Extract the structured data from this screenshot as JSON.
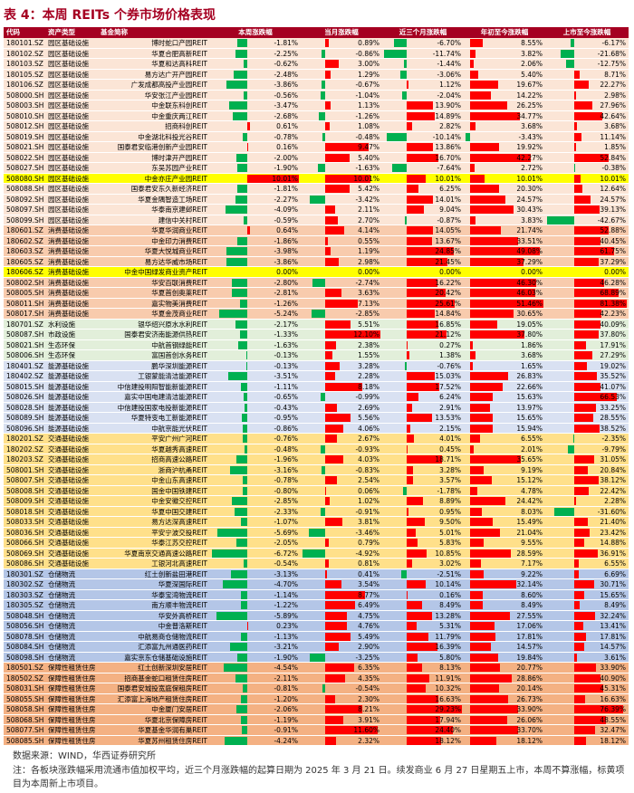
{
  "title": "表 4：本周 REITs 个券市场价格表现",
  "table": {
    "header": [
      "代码",
      "资产类型",
      "基金简称",
      "本周涨跌幅",
      "当月涨跌幅",
      "近三个月涨跌幅",
      "年初至今涨跌幅",
      "上市至今涨跌幅"
    ],
    "group_colors": {
      "园区基础设施": "#fbe5d6",
      "消费基础设施": "#f8cbad",
      "水利设施": "#e2efda",
      "市政设施": "#e2efda",
      "生态环保": "#e2efda",
      "能源基础设施": "#d9e1f2",
      "交通基础设施": "#ffe08a",
      "仓储物流": "#b4c6e7",
      "保障性租赁住房": "#f4b183"
    },
    "highlight_rows": [
      13,
      22
    ],
    "highlight_color": "#ffff00",
    "positive_color": "#ff0000",
    "negative_color": "#00b050",
    "rows": [
      [
        "180101.SZ",
        "园区基础设施",
        "博时蛇口产园REIT",
        "-1.81%",
        "0.89%",
        "-6.70%",
        "8.55%",
        "-6.17%"
      ],
      [
        "180102.SZ",
        "园区基础设施",
        "华夏合肥高新REIT",
        "-2.25%",
        "-0.86%",
        "-11.74%",
        "3.82%",
        "-21.68%"
      ],
      [
        "180103.SZ",
        "园区基础设施",
        "华夏和达高科REIT",
        "-0.62%",
        "3.00%",
        "-1.44%",
        "2.06%",
        "-12.75%"
      ],
      [
        "180105.SZ",
        "园区基础设施",
        "易方达广开产园REIT",
        "-2.48%",
        "1.29%",
        "-3.06%",
        "5.40%",
        "8.71%"
      ],
      [
        "180106.SZ",
        "园区基础设施",
        "广发成都高投产业园REIT",
        "-3.86%",
        "-0.67%",
        "1.12%",
        "19.67%",
        "22.27%"
      ],
      [
        "508000.SH",
        "园区基础设施",
        "华安张江产业园REIT",
        "-0.56%",
        "-1.04%",
        "-2.04%",
        "14.22%",
        "2.98%"
      ],
      [
        "508003.SH",
        "园区基础设施",
        "中金联东科创REIT",
        "-3.47%",
        "1.13%",
        "13.90%",
        "26.25%",
        "27.96%"
      ],
      [
        "508010.SH",
        "园区基础设施",
        "中金重庆两江REIT",
        "-2.68%",
        "-1.26%",
        "14.89%",
        "34.77%",
        "42.64%"
      ],
      [
        "508012.SH",
        "园区基础设施",
        "招商科创REIT",
        "0.61%",
        "1.08%",
        "2.82%",
        "3.68%",
        "3.68%"
      ],
      [
        "508019.SH",
        "园区基础设施",
        "中金湖北科投光谷REIT",
        "-0.78%",
        "-0.48%",
        "-10.14%",
        "-3.43%",
        "11.14%"
      ],
      [
        "508021.SH",
        "园区基础设施",
        "国泰君安临港创新产业园REIT",
        "0.16%",
        "9.47%",
        "13.86%",
        "19.92%",
        "1.85%"
      ],
      [
        "508022.SH",
        "园区基础设施",
        "博时津开产园REIT",
        "-2.00%",
        "5.40%",
        "16.70%",
        "42.27%",
        "52.84%"
      ],
      [
        "508027.SH",
        "园区基础设施",
        "东吴苏园产业REIT",
        "-1.90%",
        "-1.63%",
        "-7.64%",
        "2.72%",
        "-0.38%"
      ],
      [
        "508080.SH",
        "园区基础设施",
        "中金亦庄产业园REIT",
        "10.01%",
        "10.01%",
        "10.01%",
        "10.01%",
        "10.01%"
      ],
      [
        "508088.SH",
        "园区基础设施",
        "国泰君安东久新经济REIT",
        "-1.81%",
        "5.42%",
        "6.25%",
        "20.30%",
        "12.64%"
      ],
      [
        "508092.SH",
        "园区基础设施",
        "华夏金隅智造工场REIT",
        "-2.27%",
        "-3.42%",
        "14.01%",
        "24.57%",
        "24.57%"
      ],
      [
        "508097.SH",
        "园区基础设施",
        "华泰南京建邺REIT",
        "-4.09%",
        "2.11%",
        "9.04%",
        "30.43%",
        "39.13%"
      ],
      [
        "508099.SH",
        "园区基础设施",
        "建信中关村REIT",
        "-0.59%",
        "2.70%",
        "-0.87%",
        "3.83%",
        "-42.67%"
      ],
      [
        "180601.SZ",
        "消费基础设施",
        "华夏华润商业REIT",
        "0.64%",
        "4.14%",
        "14.05%",
        "21.74%",
        "52.88%"
      ],
      [
        "180602.SZ",
        "消费基础设施",
        "中金印力消费REIT",
        "-1.86%",
        "0.55%",
        "13.67%",
        "33.51%",
        "40.45%"
      ],
      [
        "180603.SZ",
        "消费基础设施",
        "华夏大悦城商业REIT",
        "-3.98%",
        "1.19%",
        "24.85%",
        "49.08%",
        "61.75%"
      ],
      [
        "180605.SZ",
        "消费基础设施",
        "易方达华威市场REIT",
        "-3.86%",
        "2.98%",
        "21.45%",
        "37.29%",
        "37.29%"
      ],
      [
        "180606.SZ",
        "消费基础设施",
        "中金中国绿发商业资产REIT",
        "0.00%",
        "0.00%",
        "0.00%",
        "0.00%",
        "0.00%"
      ],
      [
        "508002.SH",
        "消费基础设施",
        "华安百联消费REIT",
        "-2.80%",
        "-2.74%",
        "16.22%",
        "46.30%",
        "46.28%"
      ],
      [
        "508005.SH",
        "消费基础设施",
        "华夏首创奥莱REIT",
        "-2.81%",
        "3.63%",
        "20.42%",
        "46.03%",
        "68.89%"
      ],
      [
        "508011.SH",
        "消费基础设施",
        "嘉实物美消费REIT",
        "-1.26%",
        "7.13%",
        "25.61%",
        "51.46%",
        "81.38%"
      ],
      [
        "508017.SH",
        "消费基础设施",
        "华夏金茂商业REIT",
        "-5.24%",
        "-2.85%",
        "14.84%",
        "30.65%",
        "42.23%"
      ],
      [
        "180701.SZ",
        "水利设施",
        "银华绍兴原水水利REIT",
        "-2.17%",
        "5.51%",
        "16.85%",
        "19.05%",
        "40.09%"
      ],
      [
        "508087.SH",
        "市政设施",
        "国泰君安济南能源供热REIT",
        "-1.33%",
        "12.10%",
        "21.12%",
        "37.80%",
        "37.80%"
      ],
      [
        "508021.SH",
        "生态环保",
        "中航首钢绿能REIT",
        "-1.63%",
        "2.38%",
        "0.27%",
        "1.86%",
        "17.91%"
      ],
      [
        "508006.SH",
        "生态环保",
        "富国首创水务REIT",
        "-0.13%",
        "1.55%",
        "1.38%",
        "3.68%",
        "27.29%"
      ],
      [
        "180401.SZ",
        "能源基础设施",
        "鹏华深圳能源REIT",
        "-0.13%",
        "3.28%",
        "-0.76%",
        "1.65%",
        "19.02%"
      ],
      [
        "180402.SZ",
        "能源基础设施",
        "工银蒙能清洁能源REIT",
        "-3.51%",
        "2.28%",
        "15.03%",
        "26.83%",
        "35.52%"
      ],
      [
        "508015.SH",
        "能源基础设施",
        "中信建投明阳智能新能源REIT",
        "-1.11%",
        "8.18%",
        "17.52%",
        "22.66%",
        "41.07%"
      ],
      [
        "508026.SH",
        "能源基础设施",
        "嘉实中国电建清洁能源REIT",
        "-0.65%",
        "-0.99%",
        "6.24%",
        "15.63%",
        "66.53%"
      ],
      [
        "508028.SH",
        "能源基础设施",
        "中信建投国家电投新能源REIT",
        "-0.43%",
        "2.69%",
        "2.91%",
        "13.97%",
        "33.25%"
      ],
      [
        "508089.SH",
        "能源基础设施",
        "华夏特变电工新能源REIT",
        "-0.95%",
        "5.56%",
        "13.53%",
        "15.65%",
        "28.55%"
      ],
      [
        "508096.SH",
        "能源基础设施",
        "中航京能光伏REIT",
        "-0.86%",
        "4.06%",
        "2.15%",
        "15.94%",
        "38.52%"
      ],
      [
        "180201.SZ",
        "交通基础设施",
        "平安广州广河REIT",
        "-0.76%",
        "2.67%",
        "4.01%",
        "6.55%",
        "-2.35%"
      ],
      [
        "180202.SZ",
        "交通基础设施",
        "华夏越秀高速REIT",
        "-0.48%",
        "-0.93%",
        "0.45%",
        "2.01%",
        "-9.79%"
      ],
      [
        "180203.SZ",
        "交通基础设施",
        "招商高速公路REIT",
        "-1.96%",
        "4.03%",
        "18.71%",
        "35.65%",
        "31.05%"
      ],
      [
        "508001.SH",
        "交通基础设施",
        "浙商沪杭甬REIT",
        "-3.16%",
        "-0.83%",
        "3.28%",
        "9.19%",
        "20.84%"
      ],
      [
        "508007.SH",
        "交通基础设施",
        "中金山东高速REIT",
        "-0.78%",
        "2.54%",
        "3.57%",
        "15.12%",
        "38.12%"
      ],
      [
        "508008.SH",
        "交通基础设施",
        "国金中国铁建REIT",
        "-0.80%",
        "0.06%",
        "-1.78%",
        "4.78%",
        "22.42%"
      ],
      [
        "508009.SH",
        "交通基础设施",
        "中金安徽交控REIT",
        "-2.85%",
        "1.02%",
        "8.89%",
        "24.42%",
        "2.28%"
      ],
      [
        "508018.SH",
        "交通基础设施",
        "华夏中国交建REIT",
        "-2.33%",
        "-0.91%",
        "0.95%",
        "8.03%",
        "-31.60%"
      ],
      [
        "508033.SH",
        "交通基础设施",
        "易方达深高速REIT",
        "-1.07%",
        "3.81%",
        "9.50%",
        "15.49%",
        "21.40%"
      ],
      [
        "508036.SH",
        "交通基础设施",
        "平安宁波交投REIT",
        "-5.69%",
        "-3.46%",
        "5.01%",
        "21.04%",
        "23.42%"
      ],
      [
        "508066.SH",
        "交通基础设施",
        "华泰江苏交控REIT",
        "-2.05%",
        "0.79%",
        "5.83%",
        "9.55%",
        "14.88%"
      ],
      [
        "508069.SH",
        "交通基础设施",
        "华夏南京交通高速公路REIT",
        "-6.72%",
        "-4.92%",
        "10.85%",
        "28.59%",
        "36.91%"
      ],
      [
        "508086.SH",
        "交通基础设施",
        "工银河北高速REIT",
        "-0.54%",
        "0.81%",
        "3.02%",
        "7.17%",
        "6.55%"
      ],
      [
        "180301.SZ",
        "仓储物流",
        "红土创新盐田港REIT",
        "-3.13%",
        "0.41%",
        "-2.51%",
        "9.22%",
        "6.69%"
      ],
      [
        "180302.SZ",
        "仓储物流",
        "华夏深国际REIT",
        "-4.70%",
        "3.54%",
        "10.14%",
        "32.14%",
        "30.71%"
      ],
      [
        "180303.SZ",
        "仓储物流",
        "华泰宝湾物流REIT",
        "-1.14%",
        "8.77%",
        "0.16%",
        "8.60%",
        "15.65%"
      ],
      [
        "180305.SZ",
        "仓储物流",
        "南方顺丰物流REIT",
        "-1.22%",
        "6.49%",
        "8.49%",
        "8.49%",
        "8.49%"
      ],
      [
        "508048.SH",
        "仓储物流",
        "华安外高桥REIT",
        "-5.89%",
        "4.75%",
        "13.28%",
        "27.55%",
        "32.24%"
      ],
      [
        "508056.SH",
        "仓储物流",
        "中金普洛斯REIT",
        "0.23%",
        "4.76%",
        "5.31%",
        "17.06%",
        "13.41%"
      ],
      [
        "508078.SH",
        "仓储物流",
        "中航易商仓储物流REIT",
        "-1.13%",
        "5.49%",
        "11.79%",
        "17.81%",
        "17.81%"
      ],
      [
        "508084.SH",
        "仓储物流",
        "汇添富九州通医药REIT",
        "-3.21%",
        "2.90%",
        "16.39%",
        "14.57%",
        "14.57%"
      ],
      [
        "508098.SH",
        "仓储物流",
        "嘉实京东仓储基础设施REIT",
        "-1.90%",
        "-3.25%",
        "5.80%",
        "19.84%",
        "3.61%"
      ],
      [
        "180501.SZ",
        "保障性租赁住房",
        "红土创新深圳安居REIT",
        "-4.54%",
        "6.35%",
        "8.13%",
        "20.77%",
        "33.90%"
      ],
      [
        "180502.SZ",
        "保障性租赁住房",
        "招商基金蛇口租赁住房REIT",
        "-2.11%",
        "4.35%",
        "11.91%",
        "28.86%",
        "40.90%"
      ],
      [
        "508031.SH",
        "保障性租赁住房",
        "国泰君安城投宽庭保租房REIT",
        "-0.81%",
        "-0.54%",
        "10.32%",
        "20.14%",
        "45.31%"
      ],
      [
        "508055.SH",
        "保障性租赁住房",
        "汇添富上海地产租赁住房REIT",
        "-1.20%",
        "2.30%",
        "16.63%",
        "26.73%",
        "16.63%"
      ],
      [
        "508058.SH",
        "保障性租赁住房",
        "中金厦门安居REIT",
        "-2.06%",
        "8.21%",
        "29.23%",
        "33.90%",
        "76.39%"
      ],
      [
        "508068.SH",
        "保障性租赁住房",
        "华夏北京保障房REIT",
        "-1.19%",
        "3.91%",
        "17.94%",
        "26.06%",
        "48.55%"
      ],
      [
        "508077.SH",
        "保障性租赁住房",
        "华夏基金华润有巢REIT",
        "-0.91%",
        "11.60%",
        "24.40%",
        "33.70%",
        "32.47%"
      ],
      [
        "508085.SH",
        "保障性租赁住房",
        "华夏苏州租赁住房REIT",
        "-4.24%",
        "2.32%",
        "18.12%",
        "18.12%",
        "18.12%"
      ]
    ]
  },
  "source": "数据来源：WIND，华西证券研究所",
  "note": "注：各板块涨跌幅采用流通市值加权平均，近三个月涨跌幅的起算日期为 2025 年 3 月 21 日。续发商业 6 月 27 日星期五上市，本周不算涨幅，标黄项目为本周新上市项目。"
}
